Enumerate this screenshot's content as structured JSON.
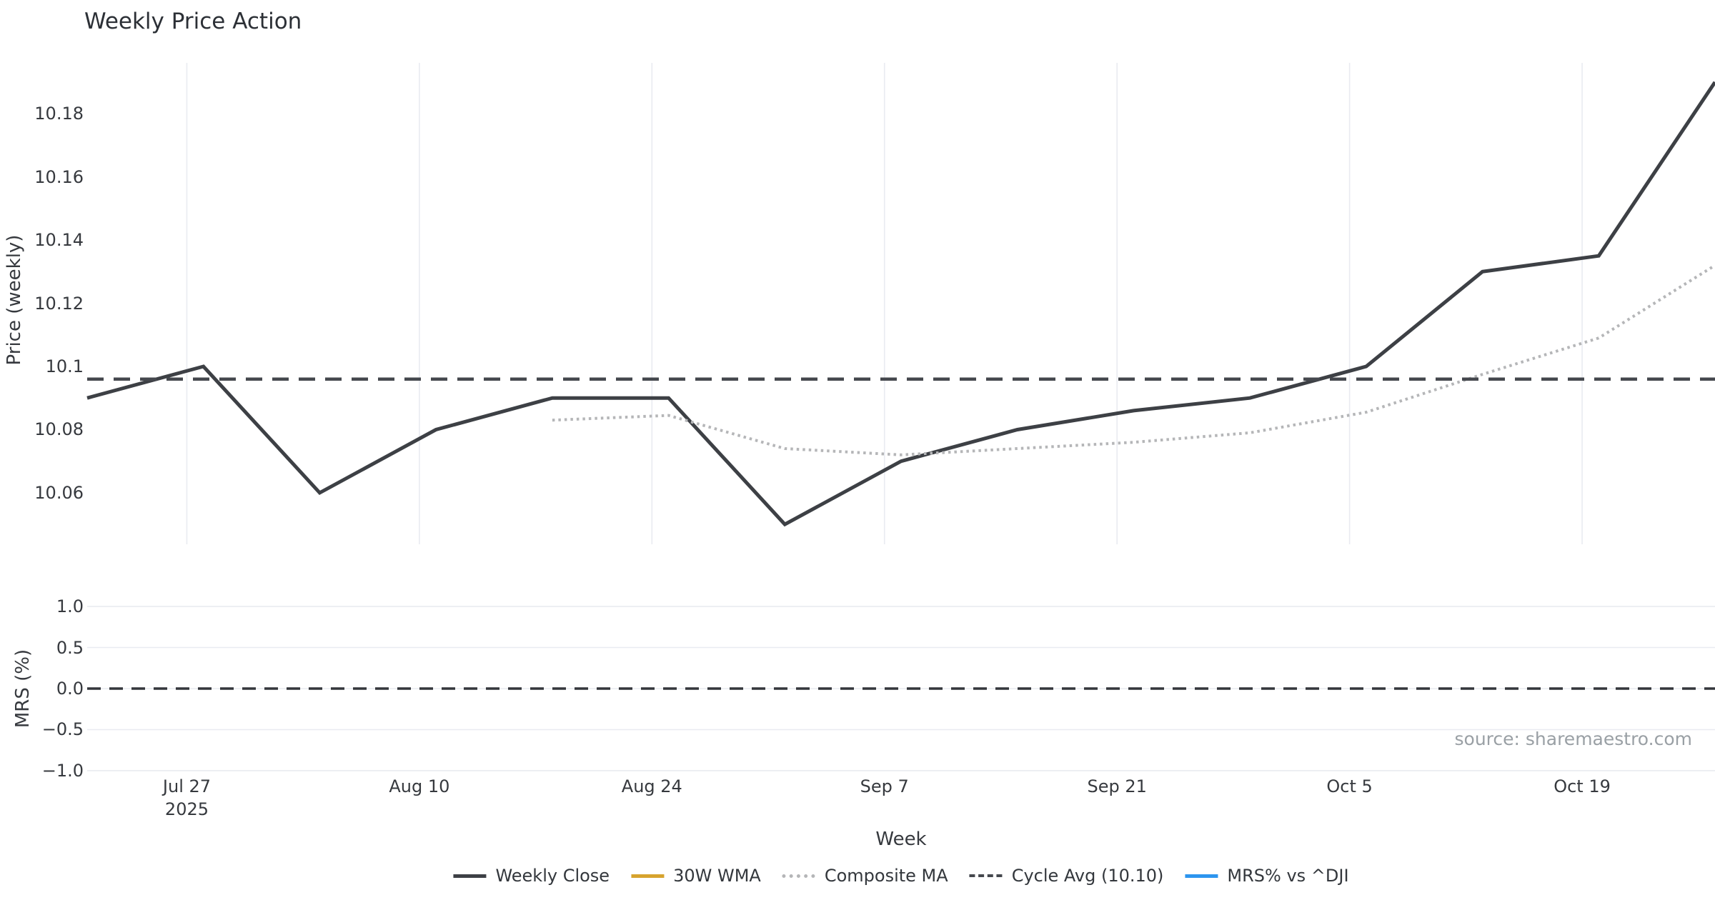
{
  "title": "Weekly Price Action",
  "source_credit": "source: sharemaestro.com",
  "colors": {
    "weekly_close": "#3d4045",
    "wma_30w": "#d7a32e",
    "composite_ma": "#b5b6b8",
    "cycle_avg": "#45484e",
    "mrs_line": "#2d95ef",
    "zero_line": "#33363b",
    "grid": "#e9ebf1",
    "text": "#36393e",
    "muted_text": "#9aa0a5"
  },
  "legend": [
    {
      "label": "Weekly Close",
      "style": "solid",
      "color": "#3d4045"
    },
    {
      "label": "30W WMA",
      "style": "solid",
      "color": "#d7a32e"
    },
    {
      "label": "Composite MA",
      "style": "dotted",
      "color": "#b5b6b8"
    },
    {
      "label": "Cycle Avg (10.10)",
      "style": "dashed",
      "color": "#45484e"
    },
    {
      "label": "MRS% vs ^DJI",
      "style": "solid",
      "color": "#2d95ef"
    }
  ],
  "chart_data": {
    "type": "line",
    "xlabel": "Week",
    "x_ticks": [
      {
        "label": "Jul 27",
        "sublabel": "2025",
        "day": 6
      },
      {
        "label": "Aug 10",
        "sublabel": "",
        "day": 20
      },
      {
        "label": "Aug 24",
        "sublabel": "",
        "day": 34
      },
      {
        "label": "Sep 7",
        "sublabel": "",
        "day": 48
      },
      {
        "label": "Sep 21",
        "sublabel": "",
        "day": 62
      },
      {
        "label": "Oct 5",
        "sublabel": "",
        "day": 76
      },
      {
        "label": "Oct 19",
        "sublabel": "",
        "day": 90
      }
    ],
    "x_span_days": 98,
    "panels": [
      {
        "name": "price",
        "ylabel": "Price (weekly)",
        "ylim": [
          10.0437,
          10.1961
        ],
        "ytick_values": [
          10.18,
          10.16,
          10.14,
          10.12,
          10.1,
          10.08,
          10.06
        ],
        "ytick_labels": [
          "10.18",
          "10.16",
          "10.14",
          "10.12",
          "10.1",
          "10.08",
          "10.06"
        ],
        "grid": "vertical",
        "series": [
          {
            "name": "Weekly Close",
            "style": "solid",
            "color": "#3d4045",
            "days": [
              0,
              7,
              14,
              21,
              28,
              35,
              42,
              49,
              56,
              63,
              70,
              77,
              84,
              91,
              98
            ],
            "values": [
              10.09,
              10.1,
              10.06,
              10.08,
              10.09,
              10.09,
              10.05,
              10.07,
              10.08,
              10.086,
              10.09,
              10.1,
              10.13,
              10.135,
              10.19
            ]
          },
          {
            "name": "Composite MA",
            "style": "dotted",
            "color": "#b5b6b8",
            "days": [
              28,
              35,
              42,
              49,
              56,
              63,
              70,
              77,
              84,
              91,
              98
            ],
            "values": [
              10.083,
              10.0845,
              10.074,
              10.072,
              10.074,
              10.076,
              10.079,
              10.0855,
              10.0975,
              10.109,
              10.132
            ]
          },
          {
            "name": "Cycle Avg",
            "style": "dashed",
            "color": "#45484e",
            "constant": 10.096,
            "displayed_value": "10.10"
          },
          {
            "name": "30W WMA",
            "style": "solid",
            "color": "#d7a32e",
            "visible": false,
            "days": [],
            "values": []
          }
        ]
      },
      {
        "name": "mrs",
        "ylabel": "MRS (%)",
        "ylim": [
          -1.148,
          1.148
        ],
        "ytick_values": [
          1.0,
          0.5,
          0.0,
          -0.5,
          -1.0
        ],
        "ytick_labels": [
          "1.0",
          "0.5",
          "0.0",
          "−0.5",
          "−1.0"
        ],
        "grid": "horizontal",
        "series": [
          {
            "name": "Zero reference",
            "style": "dashed-thin",
            "color": "#33363b",
            "constant": 0.0
          },
          {
            "name": "MRS% vs ^DJI",
            "style": "solid",
            "color": "#2d95ef",
            "visible": false,
            "days": [],
            "values": []
          }
        ]
      }
    ]
  }
}
